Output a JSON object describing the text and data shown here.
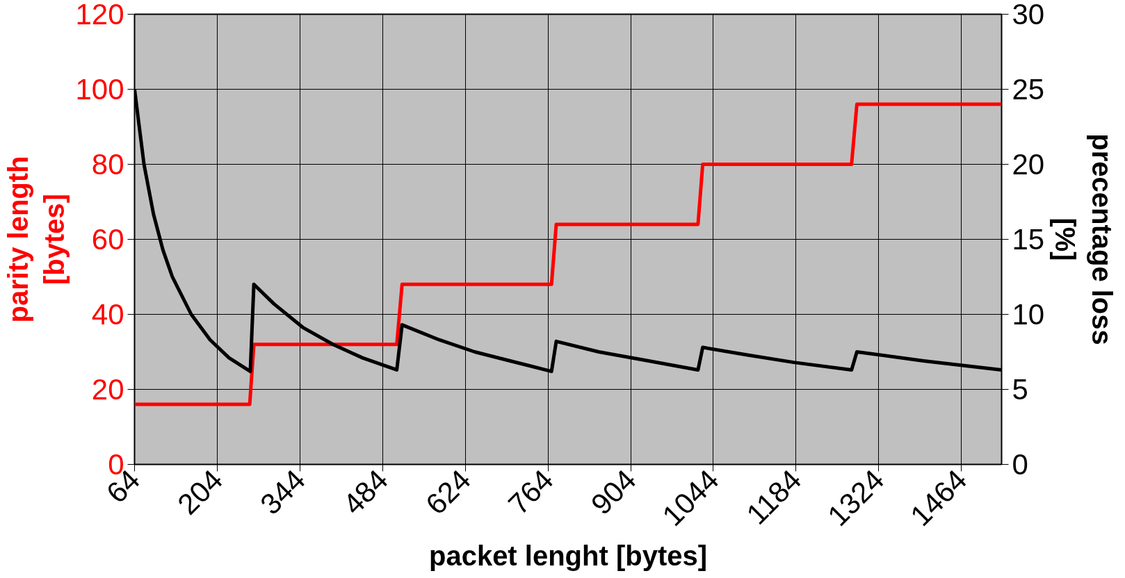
{
  "chart_data": {
    "type": "line",
    "xlabel": "packet lenght [bytes]",
    "ylabel": "parity length [bytes]",
    "y2label": "precentage loss [%]",
    "xlim": [
      64,
      1532
    ],
    "xticks": [
      64,
      204,
      344,
      484,
      624,
      764,
      904,
      1044,
      1184,
      1324,
      1464
    ],
    "ylim": [
      0,
      120
    ],
    "yticks": [
      0,
      20,
      40,
      60,
      80,
      100,
      120
    ],
    "y2lim": [
      0,
      30
    ],
    "y2ticks": [
      0,
      5,
      10,
      15,
      20,
      25,
      30
    ],
    "grid": true,
    "marker": "none",
    "line_style": "solid",
    "series": [
      {
        "color": "#ff0000",
        "x": [
          64,
          259,
          266,
          508,
          517,
          770,
          778,
          1018,
          1026,
          1278,
          1287,
          1532
        ],
        "values": [
          16,
          16,
          32,
          32,
          48,
          48,
          64,
          64,
          80,
          80,
          96,
          96
        ]
      },
      {
        "color": "#000000",
        "axis": "y2",
        "x": [
          64,
          80,
          96,
          112,
          128,
          160,
          192,
          224,
          260,
          266,
          300,
          350,
          400,
          450,
          508,
          517,
          580,
          640,
          700,
          770,
          778,
          850,
          920,
          1018,
          1026,
          1100,
          1180,
          1278,
          1287,
          1400,
          1532
        ],
        "values": [
          25,
          20,
          16.7,
          14.3,
          12.5,
          10,
          8.3,
          7.1,
          6.2,
          12.0,
          10.7,
          9.1,
          8.0,
          7.1,
          6.3,
          9.3,
          8.3,
          7.5,
          6.9,
          6.2,
          8.2,
          7.5,
          7.0,
          6.3,
          7.8,
          7.3,
          6.8,
          6.3,
          7.5,
          6.9,
          6.3
        ]
      }
    ]
  }
}
